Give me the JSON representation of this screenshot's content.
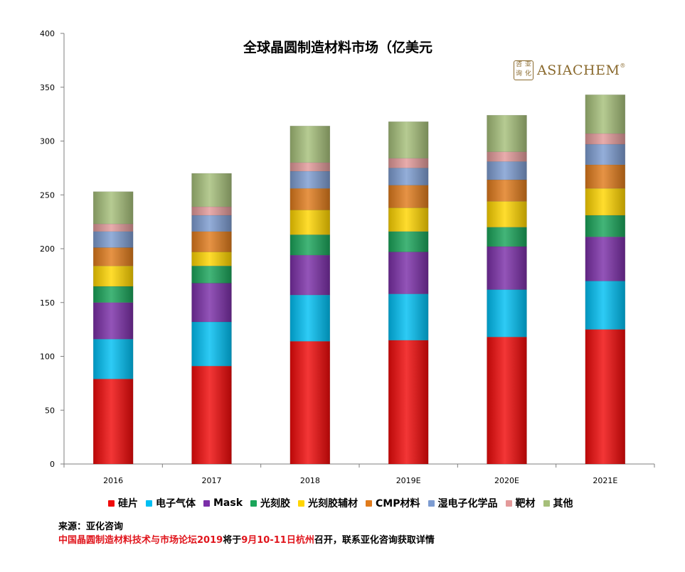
{
  "chart_data": {
    "type": "bar",
    "stacked": true,
    "title": "全球晶圆制造材料市场（亿美元",
    "categories": [
      "2016",
      "2017",
      "2018",
      "2019E",
      "2020E",
      "2021E"
    ],
    "ylim": [
      0,
      400
    ],
    "yticks": [
      "0",
      "50",
      "100",
      "150",
      "200",
      "250",
      "300",
      "350",
      "400"
    ],
    "grid": false,
    "legend_position": "bottom",
    "series": [
      {
        "name": "硅片",
        "color": "#f00a0a",
        "values": [
          79,
          91,
          114,
          115,
          118,
          125
        ]
      },
      {
        "name": "电子气体",
        "color": "#00bff3",
        "values": [
          37,
          41,
          43,
          43,
          44,
          45
        ]
      },
      {
        "name": "Mask",
        "color": "#7b2fa8",
        "values": [
          34,
          36,
          37,
          39,
          40,
          41
        ]
      },
      {
        "name": "光刻胶",
        "color": "#1aa55a",
        "values": [
          15,
          16,
          19,
          19,
          18,
          20
        ]
      },
      {
        "name": "光刻胶辅材",
        "color": "#ffd500",
        "values": [
          19,
          13,
          23,
          22,
          24,
          25
        ]
      },
      {
        "name": "CMP材料",
        "color": "#e07b1c",
        "values": [
          17,
          19,
          20,
          21,
          20,
          22
        ]
      },
      {
        "name": "湿电子化学品",
        "color": "#7d9cd1",
        "values": [
          15,
          15,
          16,
          16,
          17,
          19
        ]
      },
      {
        "name": "靶材",
        "color": "#e39a9a",
        "values": [
          7,
          8,
          8,
          9,
          9,
          10
        ]
      },
      {
        "name": "其他",
        "color": "#a6bf7a",
        "values": [
          30,
          31,
          34,
          34,
          34,
          36
        ]
      }
    ]
  },
  "brand": {
    "seal_chars": [
      "咨",
      "亚",
      "询",
      "化"
    ],
    "name": "ASIACHEM",
    "mark": "®"
  },
  "footer": {
    "source": "来源：亚化咨询",
    "note_red_1": "中国晶圆制造材料技术与市场论坛2019",
    "note_black_1": "将于",
    "note_red_2": "9月10-11日杭州",
    "note_black_2": "召开，联系亚化咨询获取详情"
  }
}
